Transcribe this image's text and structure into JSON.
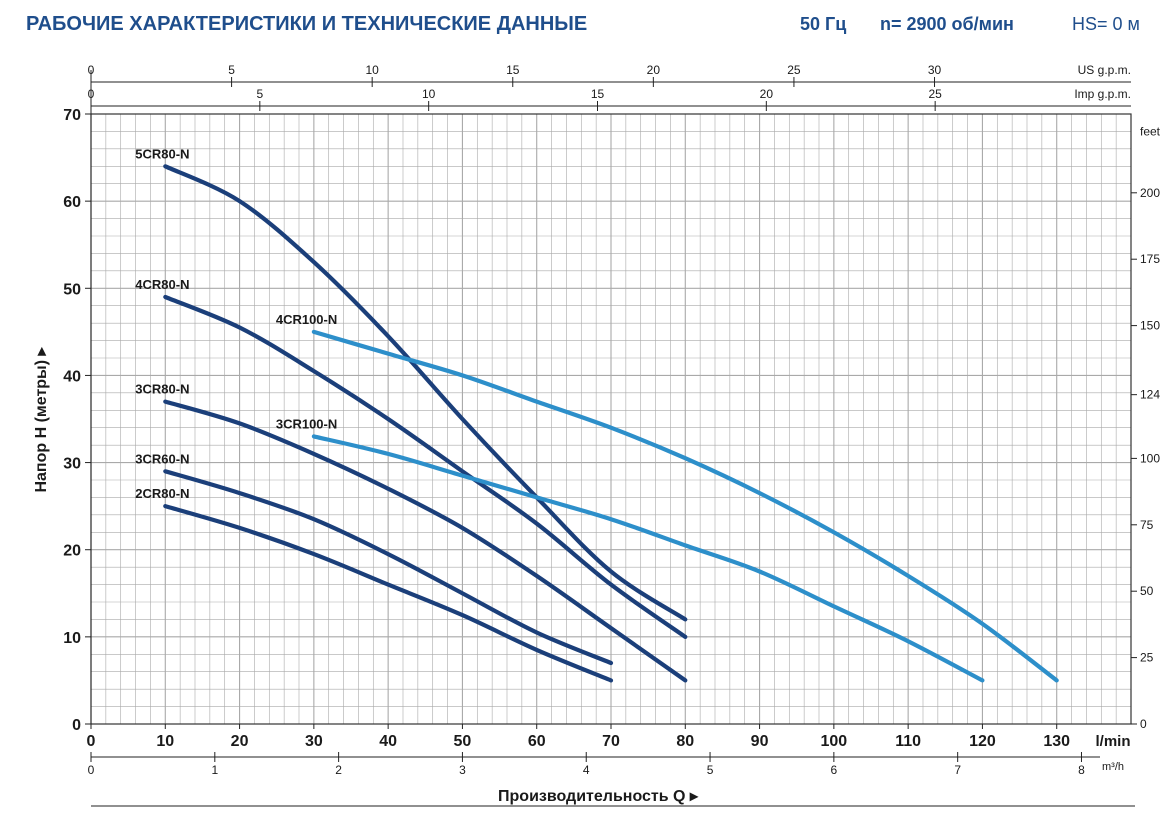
{
  "header": {
    "title": "РАБОЧИЕ ХАРАКТЕРИСТИКИ И ТЕХНИЧЕСКИЕ ДАННЫЕ",
    "frequency": "50 Гц",
    "speed": "n= 2900 об/мин",
    "hs": "HS= 0 м"
  },
  "chart_data": {
    "type": "line",
    "ylabel": "Напор H (метры)",
    "xlabel": "Производительность Q",
    "x_unit": "l/min",
    "xlim": [
      0,
      140
    ],
    "ylim": [
      0,
      70
    ],
    "x_ticks": [
      0,
      10,
      20,
      30,
      40,
      50,
      60,
      70,
      80,
      90,
      100,
      110,
      120,
      130
    ],
    "y_ticks": [
      0,
      10,
      20,
      30,
      40,
      50,
      60,
      70
    ],
    "grid": true,
    "colors": {
      "grid": "#a9a9a9",
      "dark_series": "#1b3f7a",
      "light_series": "#2d8fca",
      "header": "#1f4e8c"
    },
    "secondary_axes": {
      "top_us_gpm": {
        "label": "US g.p.m.",
        "ticks": [
          0,
          5,
          10,
          15,
          20,
          25,
          30
        ],
        "per_lmin": 0.2642
      },
      "top_imp_gpm": {
        "label": "Imp g.p.m.",
        "ticks": [
          0,
          5,
          10,
          15,
          20,
          25
        ],
        "per_lmin": 0.22
      },
      "right_feet": {
        "label": "feet",
        "ticks": [
          0,
          25,
          50,
          75,
          100,
          124,
          150,
          175,
          200
        ],
        "per_m": 3.281
      },
      "bottom_m3h": {
        "label": "m³/h",
        "ticks": [
          0,
          1,
          2,
          3,
          4,
          5,
          6,
          7,
          8
        ],
        "per_lmin": 0.06
      }
    },
    "series": [
      {
        "name": "5CR80-N",
        "tone": "dark",
        "x": [
          10,
          20,
          30,
          40,
          50,
          60,
          70,
          80
        ],
        "y": [
          64,
          60,
          53,
          44.5,
          35,
          26,
          17.5,
          12
        ]
      },
      {
        "name": "4CR80-N",
        "tone": "dark",
        "x": [
          10,
          20,
          30,
          40,
          50,
          60,
          70,
          80
        ],
        "y": [
          49,
          45.5,
          40.5,
          35,
          29,
          23,
          16,
          10
        ]
      },
      {
        "name": "3CR80-N",
        "tone": "dark",
        "x": [
          10,
          20,
          30,
          40,
          50,
          60,
          70,
          80
        ],
        "y": [
          37,
          34.5,
          31,
          27,
          22.5,
          17,
          11,
          5
        ]
      },
      {
        "name": "3CR60-N",
        "tone": "dark",
        "x": [
          10,
          20,
          30,
          40,
          50,
          60,
          70
        ],
        "y": [
          29,
          26.5,
          23.5,
          19.5,
          15,
          10.5,
          7
        ]
      },
      {
        "name": "2CR80-N",
        "tone": "dark",
        "x": [
          10,
          20,
          30,
          40,
          50,
          60,
          70
        ],
        "y": [
          25,
          22.5,
          19.5,
          16,
          12.5,
          8.5,
          5
        ]
      },
      {
        "name": "4CR100-N",
        "tone": "light",
        "x": [
          30,
          40,
          50,
          60,
          70,
          80,
          90,
          100,
          110,
          120,
          130
        ],
        "y": [
          45,
          42.5,
          40,
          37,
          34,
          30.5,
          26.5,
          22,
          17,
          11.5,
          5
        ]
      },
      {
        "name": "3CR100-N",
        "tone": "light",
        "x": [
          30,
          40,
          50,
          60,
          70,
          80,
          90,
          100,
          110,
          120
        ],
        "y": [
          33,
          31,
          28.5,
          26,
          23.5,
          20.5,
          17.5,
          13.5,
          9.5,
          5
        ]
      }
    ]
  }
}
